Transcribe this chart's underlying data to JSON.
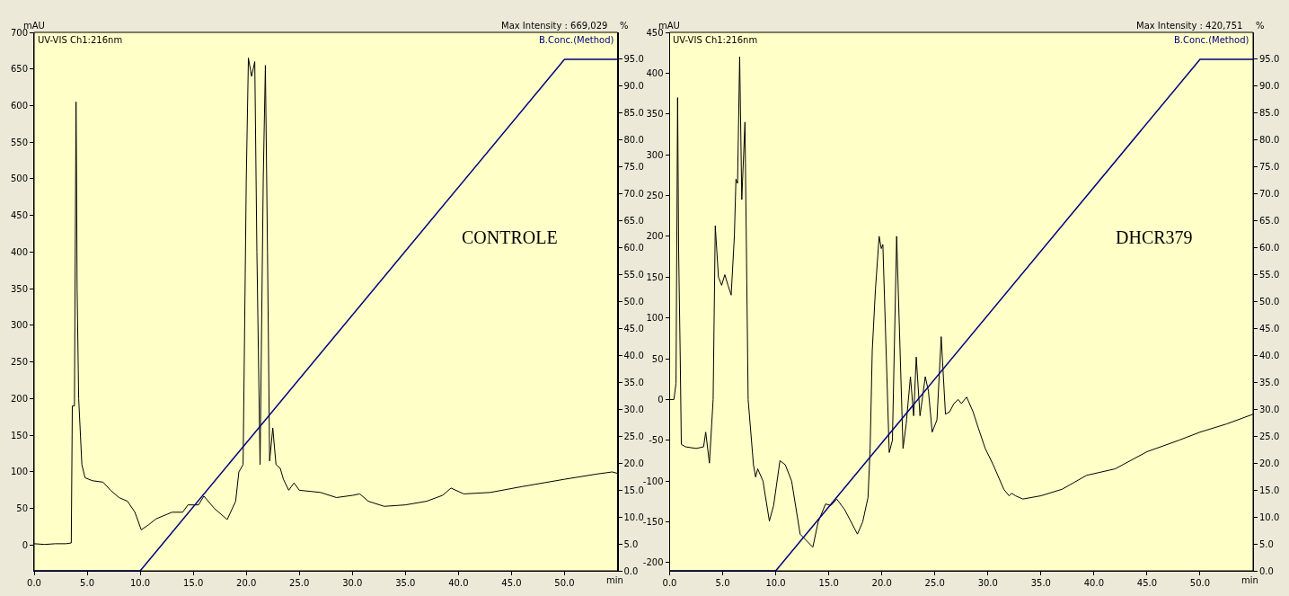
{
  "chart_data": [
    {
      "type": "line",
      "xlabel": "min",
      "ylabel": "mAU",
      "y2label": "%",
      "annotations": [
        "Max Intensity : 669,029",
        "CONTROLE"
      ],
      "series": [
        {
          "name": "UV-VIS Ch1:216nm",
          "color": "#000000",
          "x": [
            0,
            1,
            2,
            3,
            3.5,
            3.6,
            3.8,
            3.95,
            4.0,
            4.05,
            4.2,
            4.5,
            4.8,
            5.5,
            6.5,
            7.2,
            8,
            8.8,
            9.5,
            10.1,
            10.8,
            11.5,
            13,
            14,
            14.5,
            15.5,
            16,
            17,
            18.2,
            19,
            19.3,
            19.7,
            20.0,
            20.2,
            20.5,
            20.8,
            21.0,
            21.3,
            21.6,
            21.8,
            22.0,
            22.2,
            22.5,
            22.8,
            23.2,
            23.5,
            24,
            24.5,
            25,
            27,
            28.5,
            30,
            30.7,
            31.5,
            33,
            35,
            37,
            38.5,
            39.3,
            40.5,
            43,
            46,
            50,
            53,
            54.5,
            55
          ],
          "values": [
            2,
            1,
            2,
            2,
            3,
            190,
            190,
            605,
            500,
            350,
            200,
            110,
            92,
            88,
            86,
            75,
            65,
            60,
            45,
            21,
            28,
            36,
            45,
            45,
            55,
            55,
            67,
            50,
            35,
            60,
            100,
            110,
            500,
            665,
            640,
            660,
            400,
            110,
            500,
            655,
            400,
            115,
            160,
            110,
            105,
            90,
            75,
            85,
            75,
            72,
            65,
            68,
            70,
            60,
            53,
            55,
            60,
            68,
            78,
            70,
            72,
            80,
            90,
            97,
            100,
            98
          ]
        },
        {
          "name": "B.Conc.(Method)",
          "color": "#000080",
          "axis": "y2",
          "x": [
            0,
            10,
            50,
            55
          ],
          "values": [
            0,
            0,
            95,
            95
          ]
        }
      ],
      "xlim": [
        0,
        55
      ],
      "ylim": [
        -35,
        700
      ],
      "y2lim": [
        0,
        100
      ],
      "xticks": [
        {
          "value": 0,
          "label": "0.0"
        },
        {
          "value": 5,
          "label": "5.0"
        },
        {
          "value": 10,
          "label": "10.0"
        },
        {
          "value": 15,
          "label": "15.0"
        },
        {
          "value": 20,
          "label": "20.0"
        },
        {
          "value": 25,
          "label": "25.0"
        },
        {
          "value": 30,
          "label": "30.0"
        },
        {
          "value": 35,
          "label": "35.0"
        },
        {
          "value": 40,
          "label": "40.0"
        },
        {
          "value": 45,
          "label": "45.0"
        },
        {
          "value": 50,
          "label": "50.0"
        }
      ],
      "yticks": [
        0,
        50,
        100,
        150,
        200,
        250,
        300,
        350,
        400,
        450,
        500,
        550,
        600,
        650,
        700
      ],
      "y2ticks": [
        {
          "value": 0,
          "label": "0.0"
        },
        {
          "value": 5,
          "label": "5.0"
        },
        {
          "value": 10,
          "label": "10.0"
        },
        {
          "value": 15,
          "label": "15.0"
        },
        {
          "value": 20,
          "label": "20.0"
        },
        {
          "value": 25,
          "label": "25.0"
        },
        {
          "value": 30,
          "label": "30.0"
        },
        {
          "value": 35,
          "label": "35.0"
        },
        {
          "value": 40,
          "label": "40.0"
        },
        {
          "value": 45,
          "label": "45.0"
        },
        {
          "value": 50,
          "label": "50.0"
        },
        {
          "value": 55,
          "label": "55.0"
        },
        {
          "value": 60,
          "label": "60.0"
        },
        {
          "value": 65,
          "label": "65.0"
        },
        {
          "value": 70,
          "label": "70.0"
        },
        {
          "value": 75,
          "label": "75.0"
        },
        {
          "value": 80,
          "label": "80.0"
        },
        {
          "value": 85,
          "label": "85.0"
        },
        {
          "value": 90,
          "label": "90.0"
        },
        {
          "value": 95,
          "label": "95.0"
        }
      ],
      "grid": false,
      "legend": false
    },
    {
      "type": "line",
      "xlabel": "min",
      "ylabel": "mAU",
      "y2label": "%",
      "annotations": [
        "Max Intensity : 420,751",
        "DHCR379"
      ],
      "series": [
        {
          "name": "UV-VIS Ch1:216nm",
          "color": "#000000",
          "x": [
            0,
            0.4,
            0.6,
            0.75,
            0.85,
            1.0,
            1.1,
            1.5,
            2.5,
            3.2,
            3.4,
            3.75,
            4.1,
            4.3,
            4.6,
            4.9,
            5.2,
            5.5,
            5.8,
            6.1,
            6.25,
            6.4,
            6.6,
            6.8,
            7.1,
            7.4,
            7.9,
            8.1,
            8.3,
            8.8,
            9.4,
            9.8,
            10.4,
            10.9,
            11.5,
            12.3,
            13.5,
            14.0,
            14.7,
            15.2,
            15.75,
            16.5,
            17.7,
            18.2,
            18.7,
            18.9,
            19.1,
            19.4,
            19.75,
            19.95,
            20.1,
            20.7,
            21.0,
            21.4,
            22.0,
            22.3,
            22.7,
            23.0,
            23.25,
            23.6,
            24.1,
            24.4,
            24.75,
            25.2,
            25.6,
            26.0,
            26.4,
            26.8,
            27.2,
            27.5,
            28.0,
            28.6,
            29.1,
            29.75,
            30.5,
            31.5,
            32.0,
            32.25,
            32.6,
            33.3,
            35,
            37,
            39.3,
            42,
            45,
            48,
            50,
            52.5,
            55
          ],
          "values": [
            0,
            0,
            20,
            370,
            180,
            50,
            -55,
            -58,
            -60,
            -58,
            -40,
            -78,
            0,
            213,
            150,
            140,
            153,
            140,
            128,
            200,
            270,
            265,
            420,
            245,
            340,
            0,
            -80,
            -95,
            -85,
            -100,
            -149,
            -130,
            -75,
            -80,
            -100,
            -165,
            -181,
            -150,
            -128,
            -130,
            -122,
            -135,
            -165,
            -150,
            -120,
            -60,
            60,
            135,
            200,
            185,
            190,
            -65,
            -50,
            200,
            -60,
            -30,
            28,
            -20,
            52,
            -20,
            28,
            10,
            -40,
            -25,
            77,
            -18,
            -15,
            -5,
            0,
            -5,
            3,
            -15,
            -35,
            -60,
            -80,
            -110,
            -118,
            -115,
            -118,
            -122,
            -118,
            -110,
            -93,
            -85,
            -64,
            -50,
            -40,
            -30,
            -18
          ]
        },
        {
          "name": "B.Conc.(Method)",
          "color": "#000080",
          "axis": "y2",
          "x": [
            0,
            10,
            50,
            55
          ],
          "values": [
            0,
            0,
            95,
            95
          ]
        }
      ],
      "xlim": [
        0,
        55
      ],
      "ylim": [
        -210,
        450
      ],
      "y2lim": [
        0,
        100
      ],
      "xticks": [
        {
          "value": 0,
          "label": "0.0"
        },
        {
          "value": 5,
          "label": "5.0"
        },
        {
          "value": 10,
          "label": "10.0"
        },
        {
          "value": 15,
          "label": "15.0"
        },
        {
          "value": 20,
          "label": "20.0"
        },
        {
          "value": 25,
          "label": "25.0"
        },
        {
          "value": 30,
          "label": "30.0"
        },
        {
          "value": 35,
          "label": "35.0"
        },
        {
          "value": 40,
          "label": "40.0"
        },
        {
          "value": 45,
          "label": "45.0"
        },
        {
          "value": 50,
          "label": "50.0"
        }
      ],
      "yticks": [
        -200,
        -150,
        -100,
        -50,
        0,
        50,
        100,
        150,
        200,
        250,
        300,
        350,
        400,
        450
      ],
      "y2ticks": [
        {
          "value": 0,
          "label": "0.0"
        },
        {
          "value": 5,
          "label": "5.0"
        },
        {
          "value": 10,
          "label": "10.0"
        },
        {
          "value": 15,
          "label": "15.0"
        },
        {
          "value": 20,
          "label": "20.0"
        },
        {
          "value": 25,
          "label": "25.0"
        },
        {
          "value": 30,
          "label": "30.0"
        },
        {
          "value": 35,
          "label": "35.0"
        },
        {
          "value": 40,
          "label": "40.0"
        },
        {
          "value": 45,
          "label": "45.0"
        },
        {
          "value": 50,
          "label": "50.0"
        },
        {
          "value": 55,
          "label": "55.0"
        },
        {
          "value": 60,
          "label": "60.0"
        },
        {
          "value": 65,
          "label": "65.0"
        },
        {
          "value": 70,
          "label": "70.0"
        },
        {
          "value": 75,
          "label": "75.0"
        },
        {
          "value": 80,
          "label": "80.0"
        },
        {
          "value": 85,
          "label": "85.0"
        },
        {
          "value": 90,
          "label": "90.0"
        },
        {
          "value": 95,
          "label": "95.0"
        }
      ],
      "grid": false,
      "legend": false
    }
  ]
}
